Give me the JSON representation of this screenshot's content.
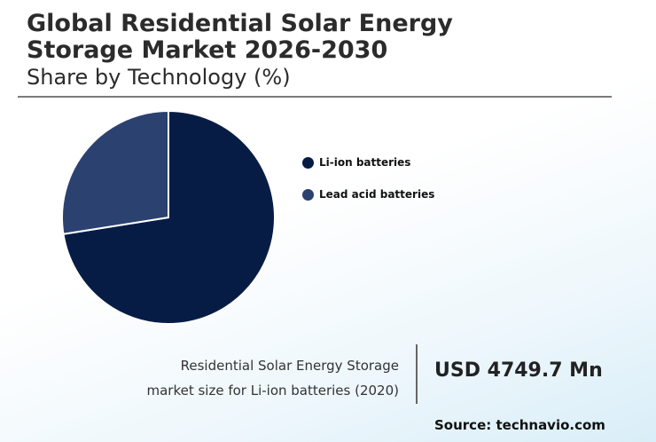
{
  "header": {
    "title_line1": "Global Residential Solar Energy",
    "title_line2": "Storage Market 2026-2030",
    "subtitle": "Share by Technology (%)"
  },
  "chart_data": {
    "type": "pie",
    "title": "Global Residential Solar Energy Storage Market 2026-2030",
    "subtitle": "Share by Technology (%)",
    "slices": [
      {
        "label": "Li-ion batteries",
        "value": 72.5,
        "color": "#071c45"
      },
      {
        "label": "Lead acid batteries",
        "value": 27.5,
        "color": "#2b4170"
      }
    ],
    "legend_position": "right"
  },
  "footer": {
    "market_label_line1": "Residential Solar Energy Storage",
    "market_label_line2": "market size for Li-ion batteries (2020)",
    "market_value": "USD 4749.7 Mn",
    "source": "Source: technavio.com"
  }
}
